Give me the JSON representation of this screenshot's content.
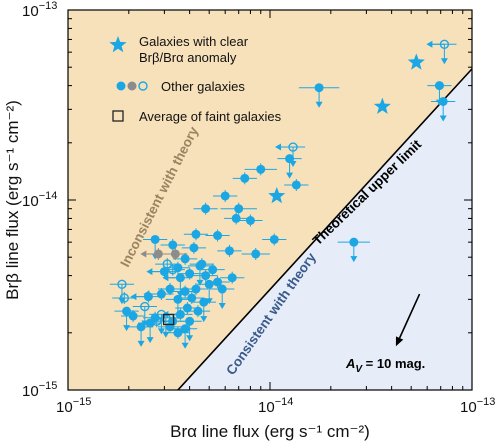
{
  "colors": {
    "upper_region": "#f7e1bb",
    "lower_region": "#e6edf8",
    "point": "#1ba7e4",
    "grey_point": "#8c8c8c",
    "upper_text": "#9a8460",
    "lower_text": "#3a5a8c",
    "average_box": "#222222"
  },
  "chart_data": {
    "type": "scatter",
    "xscale": "log",
    "yscale": "log",
    "xlim": [
      1e-15,
      1e-13
    ],
    "ylim": [
      1e-15,
      1e-13
    ],
    "xlabel": "Brα line flux (erg s⁻¹ cm⁻²)",
    "ylabel": "Brβ line flux (erg s⁻¹ cm⁻²)",
    "x_ticks": [
      {
        "value": 1e-15,
        "base": "10",
        "exp": "−15"
      },
      {
        "value": 1e-14,
        "base": "10",
        "exp": "−14"
      },
      {
        "value": 1e-13,
        "base": "10",
        "exp": "−13"
      }
    ],
    "y_ticks": [
      {
        "value": 1e-15,
        "base": "10",
        "exp": "−15"
      },
      {
        "value": 1e-14,
        "base": "10",
        "exp": "−14"
      },
      {
        "value": 1e-13,
        "base": "10",
        "exp": "−13"
      }
    ],
    "upper_limit_line": {
      "label": "Theoretical upper limit",
      "x": [
        3.5e-15,
        1e-13
      ],
      "y": [
        1e-15,
        4.9e-14
      ]
    },
    "region_labels": {
      "upper": "Inconsistent with theory",
      "lower": "Consistent with theory"
    },
    "extinction_arrow": {
      "label": "A",
      "label_sub": "V",
      "label_rest": " = 10 mag.",
      "from": [
        5.5e-14,
        3.2e-15
      ],
      "to": [
        4.2e-14,
        1.7e-15
      ]
    },
    "legend": [
      {
        "symbol": "star",
        "text": "Galaxies with clear",
        "text2": "Brβ/Brα anomaly"
      },
      {
        "symbol": "circles",
        "text": "Other galaxies"
      },
      {
        "symbol": "square",
        "text": "Average of faint galaxies"
      }
    ],
    "series": [
      {
        "name": "Galaxies with clear Brβ/Brα anomaly",
        "marker": "star",
        "points": [
          {
            "x": 1.08e-14,
            "y": 1.05e-14
          },
          {
            "x": 3.6e-14,
            "y": 3.1e-14
          },
          {
            "x": 5.3e-14,
            "y": 5.3e-14
          }
        ]
      },
      {
        "name": "Other galaxies",
        "marker": "circle",
        "points": [
          {
            "x": 1.75e-14,
            "y": 3.9e-14,
            "xerr": 0.1,
            "ulim": true
          },
          {
            "x": 6.9e-14,
            "y": 4e-14,
            "ulim": true
          },
          {
            "x": 7.2e-14,
            "y": 3.3e-14,
            "ulim": true
          },
          {
            "x": 7.3e-14,
            "y": 6.6e-14,
            "open": true,
            "ulim": true,
            "xlim_arrow": true
          },
          {
            "x": 1.3e-14,
            "y": 1.9e-14,
            "open": true,
            "ulim": true,
            "xlim_arrow": true
          },
          {
            "x": 1.25e-14,
            "y": 1.65e-14,
            "ulim": true
          },
          {
            "x": 9e-15,
            "y": 1.45e-14,
            "xerr": 0.08
          },
          {
            "x": 7.5e-15,
            "y": 1.3e-14
          },
          {
            "x": 1.35e-14,
            "y": 1.2e-14
          },
          {
            "x": 6e-15,
            "y": 1.05e-14
          },
          {
            "x": 7e-15,
            "y": 9e-15,
            "xerr": 0.09
          },
          {
            "x": 4.8e-15,
            "y": 9e-15
          },
          {
            "x": 6.8e-15,
            "y": 8e-15
          },
          {
            "x": 8e-15,
            "y": 7.8e-15
          },
          {
            "x": 2.6e-14,
            "y": 6e-15,
            "xerr": 0.08,
            "ulim": true
          },
          {
            "x": 1.05e-14,
            "y": 6.2e-15
          },
          {
            "x": 5.5e-15,
            "y": 6.5e-15
          },
          {
            "x": 4.3e-15,
            "y": 6.6e-15
          },
          {
            "x": 2.7e-15,
            "y": 6.2e-15,
            "ulim": true
          },
          {
            "x": 3.3e-15,
            "y": 5.8e-15
          },
          {
            "x": 4.2e-15,
            "y": 5.6e-15
          },
          {
            "x": 6.3e-15,
            "y": 5.4e-15
          },
          {
            "x": 8.5e-15,
            "y": 5.2e-15,
            "xerr": 0.07
          },
          {
            "x": 3.8e-15,
            "y": 4.9e-15
          },
          {
            "x": 4.6e-15,
            "y": 4.6e-15
          },
          {
            "x": 3.5e-15,
            "y": 4.4e-15
          },
          {
            "x": 5.2e-15,
            "y": 4.3e-15
          },
          {
            "x": 4e-15,
            "y": 4.1e-15
          },
          {
            "x": 4.5e-15,
            "y": 4.5e-15,
            "ulim": true
          },
          {
            "x": 3.6e-15,
            "y": 3.9e-15,
            "ulim": true,
            "xlim_arrow": true
          },
          {
            "x": 3e-15,
            "y": 4.2e-15,
            "xlim_arrow": true
          },
          {
            "x": 4.8e-15,
            "y": 4e-15
          },
          {
            "x": 5.5e-15,
            "y": 3.7e-15
          },
          {
            "x": 6.5e-15,
            "y": 3.9e-15
          },
          {
            "x": 5e-15,
            "y": 3.6e-15,
            "ulim": true
          },
          {
            "x": 5.8e-15,
            "y": 3.4e-15,
            "ulim": true
          },
          {
            "x": 4.3e-15,
            "y": 3.4e-15
          },
          {
            "x": 3.8e-15,
            "y": 3.3e-15
          },
          {
            "x": 3.2e-15,
            "y": 3.4e-15
          },
          {
            "x": 3.5e-15,
            "y": 3e-15,
            "ulim": true
          },
          {
            "x": 4.1e-15,
            "y": 3.05e-15
          },
          {
            "x": 4.7e-15,
            "y": 2.9e-15,
            "ulim": true
          },
          {
            "x": 2.9e-15,
            "y": 3.2e-15,
            "xlim_arrow": true
          },
          {
            "x": 2.5e-15,
            "y": 3.1e-15,
            "xlim_arrow": true
          },
          {
            "x": 3.9e-15,
            "y": 2.7e-15
          },
          {
            "x": 4.4e-15,
            "y": 2.6e-15
          },
          {
            "x": 3.6e-15,
            "y": 2.5e-15,
            "xlim_arrow": true
          },
          {
            "x": 3.3e-15,
            "y": 2.3e-15
          },
          {
            "x": 4e-15,
            "y": 2.3e-15,
            "ulim": true
          },
          {
            "x": 2.7e-15,
            "y": 2.4e-15
          },
          {
            "x": 1.95e-15,
            "y": 2.6e-15,
            "ulim": true
          },
          {
            "x": 2.1e-15,
            "y": 2.45e-15
          },
          {
            "x": 1.85e-15,
            "y": 3.6e-15,
            "open": true,
            "ulim": true
          },
          {
            "x": 1.9e-15,
            "y": 3.05e-15,
            "open": true
          },
          {
            "x": 2.4e-15,
            "y": 2.75e-15,
            "open": true,
            "ulim": true
          },
          {
            "x": 3.1e-15,
            "y": 4.6e-15,
            "open": true
          },
          {
            "x": 3.3e-15,
            "y": 4.3e-15,
            "open": true
          },
          {
            "x": 2.9e-15,
            "y": 2.5e-15,
            "open": true,
            "ulim": true
          },
          {
            "x": 2.75e-15,
            "y": 2.3e-15,
            "open": true
          },
          {
            "x": 3.8e-15,
            "y": 2.1e-15,
            "ulim": true
          },
          {
            "x": 3.2e-15,
            "y": 2.15e-15
          },
          {
            "x": 2.55e-15,
            "y": 2.25e-15,
            "ulim": true
          },
          {
            "x": 2.3e-15,
            "y": 2.15e-15,
            "ulim": true
          },
          {
            "x": 3.5e-15,
            "y": 2e-15
          },
          {
            "x": 3.05e-15,
            "y": 2.4e-15,
            "open": true,
            "ulim": true
          },
          {
            "x": 3.4e-15,
            "y": 5.2e-15,
            "grey": true
          },
          {
            "x": 2.8e-15,
            "y": 5.2e-15,
            "grey": true,
            "xlim_arrow": true
          }
        ]
      },
      {
        "name": "Average of faint galaxies",
        "marker": "square",
        "points": [
          {
            "x": 3.15e-15,
            "y": 2.35e-15
          }
        ]
      }
    ]
  }
}
